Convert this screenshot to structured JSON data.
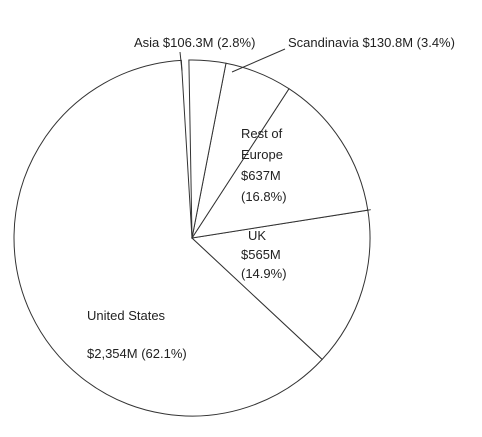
{
  "chart_data": {
    "type": "pie",
    "title": "",
    "slices": [
      {
        "name": "United States",
        "value_text": "$2,354M (62.1%)",
        "value_musd": 2354,
        "percent": 62.1,
        "label_lines": [
          "United States",
          "",
          "$2,354M (62.1%)"
        ]
      },
      {
        "name": "UK",
        "value_text": "$565M",
        "value_musd": 565,
        "percent": 14.9,
        "label_lines": [
          "UK",
          "$565M",
          "(14.9%)"
        ]
      },
      {
        "name": "Rest of Europe",
        "value_text": "$637M",
        "value_musd": 637,
        "percent": 16.8,
        "label_lines": [
          "Rest of",
          "Europe",
          "$637M",
          "(16.8%)"
        ]
      },
      {
        "name": "Scandinavia",
        "value_text": "$130.8M (3.4%)",
        "value_musd": 130.8,
        "percent": 3.4,
        "label_lines": [
          "Scandinavia $130.8M (3.4%)"
        ]
      },
      {
        "name": "Asia",
        "value_text": "$106.3M (2.8%)",
        "value_musd": 106.3,
        "percent": 2.8,
        "label_lines": [
          "Asia $106.3M (2.8%)"
        ]
      }
    ],
    "colors": {
      "fill": "#ffffff",
      "stroke": "#333333",
      "text": "#222222"
    }
  }
}
